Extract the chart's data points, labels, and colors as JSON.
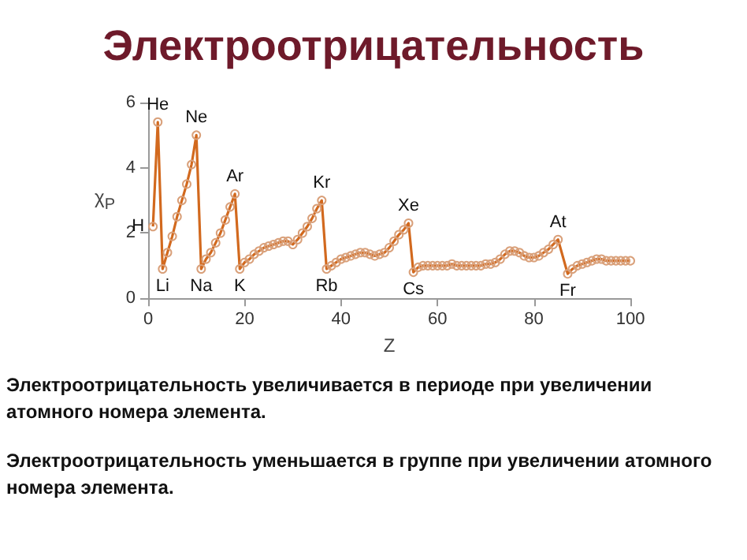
{
  "chart_data": {
    "type": "line",
    "title": "Электроотрицательность",
    "xlabel": "Z",
    "ylabel": "χ$_{P}$",
    "xlim": [
      0,
      100
    ],
    "xticks": [
      0,
      20,
      40,
      60,
      80,
      100
    ],
    "ylim": [
      0,
      6
    ],
    "yticks": [
      0,
      2,
      4,
      6
    ],
    "grid": false,
    "marker": "circle",
    "series": [
      {
        "color": "#d2691e",
        "x": [
          1,
          2,
          3,
          4,
          5,
          6,
          7,
          8,
          9,
          10,
          11,
          12,
          13,
          14,
          15,
          16,
          17,
          18,
          19,
          20,
          21,
          22,
          23,
          24,
          25,
          26,
          27,
          28,
          29,
          30,
          31,
          32,
          33,
          34,
          35,
          36,
          37,
          38,
          39,
          40,
          41,
          42,
          43,
          44,
          45,
          46,
          47,
          48,
          49,
          50,
          51,
          52,
          53,
          54,
          55,
          56,
          57,
          58,
          59,
          60,
          61,
          62,
          63,
          64,
          65,
          66,
          67,
          68,
          69,
          70,
          71,
          72,
          73,
          74,
          75,
          76,
          77,
          78,
          79,
          80,
          81,
          82,
          83,
          84,
          85,
          87,
          88,
          89,
          90,
          91,
          92,
          93,
          94,
          95,
          96,
          97,
          98,
          99,
          100
        ],
        "values": [
          2.2,
          5.4,
          0.9,
          1.4,
          1.9,
          2.5,
          3.0,
          3.5,
          4.1,
          5.0,
          0.9,
          1.2,
          1.4,
          1.7,
          2.0,
          2.4,
          2.8,
          3.2,
          0.9,
          1.1,
          1.2,
          1.35,
          1.45,
          1.55,
          1.6,
          1.65,
          1.7,
          1.75,
          1.75,
          1.65,
          1.8,
          2.0,
          2.2,
          2.45,
          2.75,
          3.0,
          0.9,
          1.0,
          1.1,
          1.2,
          1.25,
          1.3,
          1.35,
          1.4,
          1.4,
          1.35,
          1.3,
          1.35,
          1.4,
          1.55,
          1.75,
          1.95,
          2.1,
          2.3,
          0.8,
          0.95,
          1.0,
          1.0,
          1.0,
          1.0,
          1.0,
          1.0,
          1.05,
          1.0,
          1.0,
          1.0,
          1.0,
          1.0,
          1.0,
          1.05,
          1.05,
          1.1,
          1.2,
          1.35,
          1.45,
          1.45,
          1.4,
          1.3,
          1.25,
          1.25,
          1.3,
          1.4,
          1.5,
          1.65,
          1.8,
          0.75,
          0.9,
          1.0,
          1.05,
          1.1,
          1.15,
          1.2,
          1.2,
          1.15,
          1.15,
          1.15,
          1.15,
          1.15,
          1.15
        ]
      }
    ],
    "annotations": [
      {
        "text": "H",
        "x": 1,
        "y": 2.2
      },
      {
        "text": "He",
        "x": 2,
        "y": 5.4
      },
      {
        "text": "Li",
        "x": 3,
        "y": 0.9
      },
      {
        "text": "Ne",
        "x": 10,
        "y": 5.0
      },
      {
        "text": "Na",
        "x": 11,
        "y": 0.9
      },
      {
        "text": "Ar",
        "x": 18,
        "y": 3.2
      },
      {
        "text": "K",
        "x": 19,
        "y": 0.9
      },
      {
        "text": "Kr",
        "x": 36,
        "y": 3.0
      },
      {
        "text": "Rb",
        "x": 37,
        "y": 0.9
      },
      {
        "text": "Xe",
        "x": 54,
        "y": 2.3
      },
      {
        "text": "Cs",
        "x": 55,
        "y": 0.8
      },
      {
        "text": "At",
        "x": 85,
        "y": 1.8
      },
      {
        "text": "Fr",
        "x": 87,
        "y": 0.75
      },
      "Электроотрицательность увеличивается в периоде при увеличении атомного номера элемента.",
      "Электроотрицательность уменьшается в группе при увеличении атомного номера элемента."
    ]
  }
}
